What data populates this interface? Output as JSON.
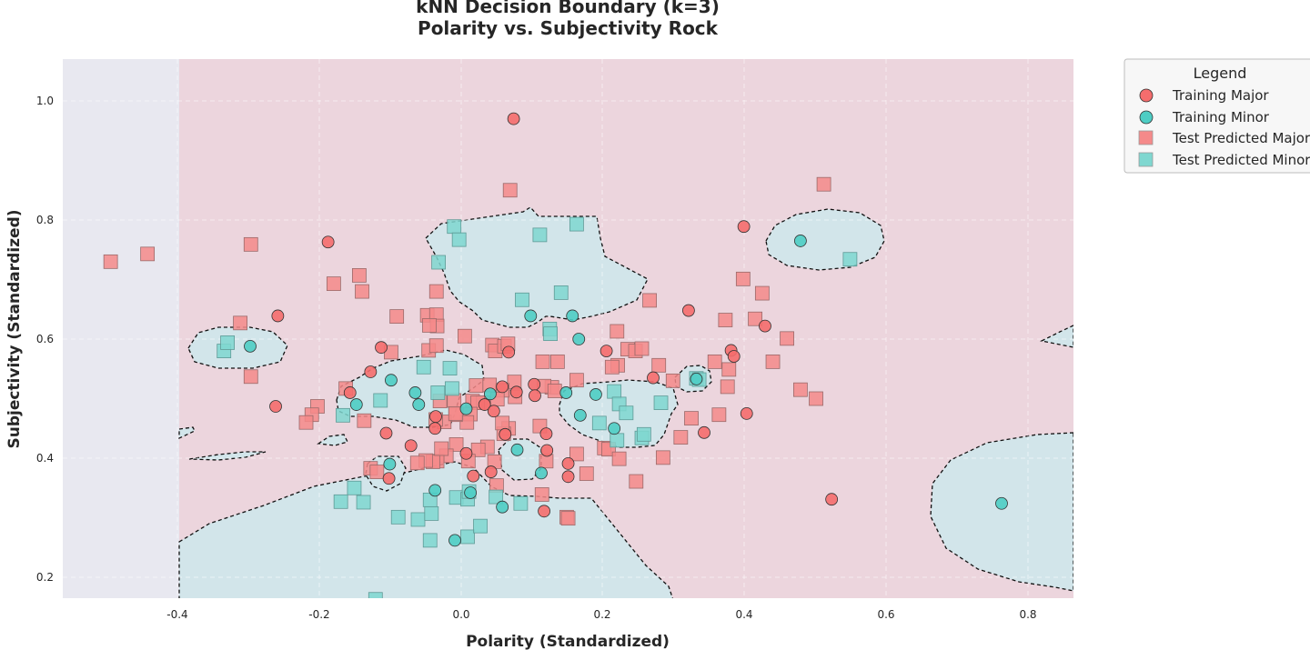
{
  "chart_data": {
    "type": "scatter",
    "title_line1": "kNN Decision Boundary (k=3)",
    "title_line2": "Polarity vs. Subjectivity Rock",
    "xlabel": "Polarity (Standardized)",
    "ylabel": "Subjectivity (Standardized)",
    "xlim": [
      -0.56,
      0.86
    ],
    "ylim": [
      0.165,
      1.07
    ],
    "x_ticks": [
      "-0.4",
      "-0.2",
      "0.0",
      "0.2",
      "0.4",
      "0.6",
      "0.8"
    ],
    "y_ticks": [
      "0.2",
      "0.4",
      "0.6",
      "0.8",
      "1.0"
    ],
    "grid": true,
    "decision_regions": {
      "major_color": "#ecd5dd",
      "minor_color": "#d2e5ea",
      "outside_color": "#e8e8f0",
      "boundary_style": "dashed black"
    },
    "legend": {
      "title": "Legend",
      "placement": "outside-right",
      "entries": [
        {
          "label": "Training Major",
          "marker": "circle",
          "color": "#f56d6d"
        },
        {
          "label": "Training Minor",
          "marker": "circle",
          "color": "#4ecdc4"
        },
        {
          "label": "Test Predicted Major",
          "marker": "square",
          "color": "#f58a8a"
        },
        {
          "label": "Test Predicted Minor",
          "marker": "square",
          "color": "#7fd7d0"
        }
      ]
    },
    "series": [
      {
        "name": "Training Major",
        "points": [
          [
            0.074,
            0.97
          ],
          [
            -0.188,
            0.763
          ],
          [
            0.399,
            0.789
          ],
          [
            -0.259,
            0.639
          ],
          [
            0.321,
            0.648
          ],
          [
            0.429,
            0.622
          ],
          [
            0.205,
            0.58
          ],
          [
            0.381,
            0.581
          ],
          [
            0.385,
            0.571
          ],
          [
            -0.113,
            0.586
          ],
          [
            -0.128,
            0.545
          ],
          [
            -0.157,
            0.51
          ],
          [
            -0.262,
            0.487
          ],
          [
            0.271,
            0.535
          ],
          [
            0.103,
            0.524
          ],
          [
            0.104,
            0.505
          ],
          [
            0.058,
            0.52
          ],
          [
            0.033,
            0.49
          ],
          [
            0.046,
            0.479
          ],
          [
            -0.036,
            0.47
          ],
          [
            -0.037,
            0.45
          ],
          [
            -0.106,
            0.442
          ],
          [
            0.12,
            0.441
          ],
          [
            0.062,
            0.44
          ],
          [
            0.343,
            0.443
          ],
          [
            0.403,
            0.475
          ],
          [
            -0.071,
            0.421
          ],
          [
            0.007,
            0.408
          ],
          [
            0.121,
            0.413
          ],
          [
            0.151,
            0.391
          ],
          [
            0.151,
            0.369
          ],
          [
            0.117,
            0.311
          ],
          [
            0.042,
            0.377
          ],
          [
            0.017,
            0.37
          ],
          [
            -0.102,
            0.366
          ],
          [
            0.523,
            0.331
          ],
          [
            0.067,
            0.578
          ],
          [
            0.078,
            0.511
          ]
        ]
      },
      {
        "name": "Training Minor",
        "points": [
          [
            0.098,
            0.639
          ],
          [
            0.157,
            0.639
          ],
          [
            0.166,
            0.6
          ],
          [
            0.479,
            0.765
          ],
          [
            -0.298,
            0.588
          ],
          [
            -0.099,
            0.531
          ],
          [
            -0.148,
            0.49
          ],
          [
            -0.065,
            0.51
          ],
          [
            -0.06,
            0.49
          ],
          [
            0.007,
            0.483
          ],
          [
            0.041,
            0.508
          ],
          [
            0.148,
            0.51
          ],
          [
            0.19,
            0.507
          ],
          [
            0.168,
            0.472
          ],
          [
            0.216,
            0.45
          ],
          [
            0.332,
            0.533
          ],
          [
            -0.101,
            0.39
          ],
          [
            0.079,
            0.414
          ],
          [
            0.113,
            0.375
          ],
          [
            -0.037,
            0.346
          ],
          [
            0.013,
            0.342
          ],
          [
            0.058,
            0.318
          ],
          [
            -0.009,
            0.262
          ],
          [
            0.763,
            0.324
          ]
        ]
      },
      {
        "name": "Test Predicted Major",
        "points": [
          [
            0.069,
            0.85
          ],
          [
            0.512,
            0.86
          ],
          [
            -0.495,
            0.73
          ],
          [
            -0.443,
            0.743
          ],
          [
            -0.297,
            0.759
          ],
          [
            -0.18,
            0.693
          ],
          [
            -0.144,
            0.707
          ],
          [
            -0.14,
            0.68
          ],
          [
            -0.091,
            0.638
          ],
          [
            -0.048,
            0.64
          ],
          [
            -0.035,
            0.641
          ],
          [
            -0.034,
            0.622
          ],
          [
            -0.045,
            0.623
          ],
          [
            -0.035,
            0.68
          ],
          [
            -0.312,
            0.627
          ],
          [
            -0.297,
            0.537
          ],
          [
            -0.203,
            0.487
          ],
          [
            -0.211,
            0.473
          ],
          [
            -0.219,
            0.46
          ],
          [
            -0.163,
            0.517
          ],
          [
            -0.137,
            0.463
          ],
          [
            -0.099,
            0.578
          ],
          [
            -0.046,
            0.581
          ],
          [
            -0.035,
            0.589
          ],
          [
            0.005,
            0.605
          ],
          [
            0.044,
            0.59
          ],
          [
            0.048,
            0.58
          ],
          [
            0.061,
            0.588
          ],
          [
            0.066,
            0.592
          ],
          [
            0.266,
            0.665
          ],
          [
            0.22,
            0.613
          ],
          [
            0.221,
            0.556
          ],
          [
            0.213,
            0.553
          ],
          [
            0.235,
            0.583
          ],
          [
            0.246,
            0.58
          ],
          [
            0.255,
            0.584
          ],
          [
            0.279,
            0.556
          ],
          [
            0.299,
            0.53
          ],
          [
            0.398,
            0.701
          ],
          [
            0.425,
            0.677
          ],
          [
            0.415,
            0.634
          ],
          [
            0.373,
            0.632
          ],
          [
            0.46,
            0.601
          ],
          [
            0.44,
            0.562
          ],
          [
            0.378,
            0.549
          ],
          [
            0.376,
            0.52
          ],
          [
            0.364,
            0.473
          ],
          [
            0.325,
            0.467
          ],
          [
            0.31,
            0.435
          ],
          [
            0.285,
            0.401
          ],
          [
            0.247,
            0.361
          ],
          [
            0.479,
            0.515
          ],
          [
            0.501,
            0.5
          ],
          [
            0.358,
            0.562
          ],
          [
            0.115,
            0.562
          ],
          [
            0.136,
            0.562
          ],
          [
            0.128,
            0.519
          ],
          [
            0.117,
            0.521
          ],
          [
            0.132,
            0.513
          ],
          [
            0.163,
            0.531
          ],
          [
            0.075,
            0.528
          ],
          [
            0.076,
            0.503
          ],
          [
            0.058,
            0.514
          ],
          [
            0.051,
            0.499
          ],
          [
            0.04,
            0.523
          ],
          [
            0.021,
            0.522
          ],
          [
            0.016,
            0.496
          ],
          [
            0.031,
            0.493
          ],
          [
            0.023,
            0.493
          ],
          [
            0.013,
            0.474
          ],
          [
            0.008,
            0.46
          ],
          [
            -0.008,
            0.473
          ],
          [
            -0.01,
            0.497
          ],
          [
            -0.03,
            0.496
          ],
          [
            -0.024,
            0.461
          ],
          [
            -0.036,
            0.465
          ],
          [
            0.067,
            0.45
          ],
          [
            0.06,
            0.441
          ],
          [
            0.058,
            0.459
          ],
          [
            0.111,
            0.454
          ],
          [
            0.037,
            0.419
          ],
          [
            0.024,
            0.414
          ],
          [
            0.01,
            0.395
          ],
          [
            -0.007,
            0.423
          ],
          [
            -0.021,
            0.404
          ],
          [
            -0.034,
            0.395
          ],
          [
            -0.04,
            0.394
          ],
          [
            -0.05,
            0.396
          ],
          [
            -0.062,
            0.392
          ],
          [
            -0.028,
            0.416
          ],
          [
            0.047,
            0.394
          ],
          [
            0.12,
            0.395
          ],
          [
            0.163,
            0.407
          ],
          [
            0.177,
            0.374
          ],
          [
            0.202,
            0.417
          ],
          [
            0.208,
            0.415
          ],
          [
            0.223,
            0.399
          ],
          [
            0.149,
            0.301
          ],
          [
            0.151,
            0.299
          ],
          [
            0.114,
            0.339
          ],
          [
            -0.128,
            0.383
          ],
          [
            -0.119,
            0.377
          ],
          [
            0.05,
            0.354
          ],
          [
            -0.008,
            0.475
          ]
        ]
      },
      {
        "name": "Test Predicted Minor",
        "points": [
          [
            -0.01,
            0.789
          ],
          [
            -0.003,
            0.767
          ],
          [
            0.111,
            0.775
          ],
          [
            0.163,
            0.793
          ],
          [
            0.086,
            0.666
          ],
          [
            0.141,
            0.678
          ],
          [
            -0.032,
            0.729
          ],
          [
            0.125,
            0.617
          ],
          [
            0.126,
            0.609
          ],
          [
            0.549,
            0.734
          ],
          [
            -0.335,
            0.58
          ],
          [
            -0.33,
            0.594
          ],
          [
            -0.167,
            0.472
          ],
          [
            -0.114,
            0.497
          ],
          [
            -0.053,
            0.553
          ],
          [
            -0.016,
            0.551
          ],
          [
            -0.013,
            0.517
          ],
          [
            -0.033,
            0.51
          ],
          [
            0.216,
            0.512
          ],
          [
            0.223,
            0.491
          ],
          [
            0.233,
            0.476
          ],
          [
            0.195,
            0.459
          ],
          [
            0.22,
            0.43
          ],
          [
            0.255,
            0.434
          ],
          [
            0.258,
            0.44
          ],
          [
            0.282,
            0.493
          ],
          [
            0.332,
            0.534
          ],
          [
            0.336,
            0.532
          ],
          [
            -0.151,
            0.35
          ],
          [
            -0.17,
            0.327
          ],
          [
            -0.138,
            0.326
          ],
          [
            -0.089,
            0.301
          ],
          [
            -0.061,
            0.297
          ],
          [
            -0.044,
            0.33
          ],
          [
            -0.042,
            0.307
          ],
          [
            -0.044,
            0.262
          ],
          [
            -0.007,
            0.334
          ],
          [
            0.009,
            0.331
          ],
          [
            0.011,
            0.344
          ],
          [
            0.009,
            0.268
          ],
          [
            0.027,
            0.286
          ],
          [
            0.049,
            0.335
          ],
          [
            0.084,
            0.324
          ],
          [
            -0.121,
            0.163
          ]
        ]
      }
    ]
  }
}
